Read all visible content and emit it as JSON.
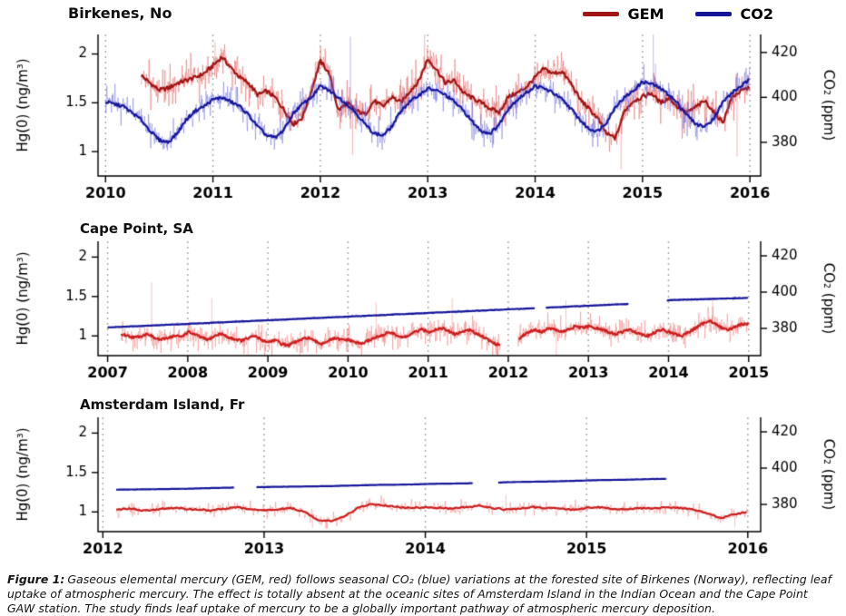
{
  "figure": {
    "legend": [
      {
        "label": "GEM",
        "color": "#a01414"
      },
      {
        "label": "CO2",
        "color": "#16169b"
      }
    ],
    "caption": {
      "label": "Figure 1:",
      "text": "Gaseous elemental mercury (GEM, red) follows seasonal CO₂ (blue) variations at the forested site of Birkenes (Norway), reflecting leaf uptake of atmospheric mercury. The effect is totally absent at the oceanic sites of Amsterdam Island in the Indian Ocean and the Cape Point GAW station. The study finds leaf uptake of mercury to be a globally important pathway of atmospheric mercury deposition."
    },
    "colors": {
      "gem_bold": "#a01414",
      "gem_raw": "rgba(225,95,95,0.6)",
      "co2_bold": "#16169b",
      "co2_raw": "rgba(100,100,215,0.55)",
      "grid": "#a8a8a8"
    }
  },
  "chart_data": [
    {
      "type": "line",
      "title": "Birkenes, No",
      "ylabel_left": "Hg(0) (ng/m³)",
      "ylabel_right": "CO₂ (ppm)",
      "xlim": [
        2009.93,
        2016.1
      ],
      "xticks": [
        2010,
        2011,
        2012,
        2013,
        2014,
        2015,
        2016
      ],
      "yleft": {
        "ticks": [
          1,
          1.5,
          2
        ],
        "lim": [
          0.75,
          2.2
        ]
      },
      "yright": {
        "ticks": [
          380,
          400,
          420
        ],
        "lim": [
          365,
          428
        ]
      },
      "grid": "vertical-dotted",
      "legend_position": "top-right",
      "series": [
        {
          "name": "GEM",
          "axis": "left",
          "color_bold": "#a01414",
          "color_raw": "rgba(225,95,95,0.6)",
          "start": 2010.333,
          "step": 0.08333,
          "noise_amp": 0.12,
          "values": [
            1.78,
            1.7,
            1.63,
            1.65,
            1.7,
            1.73,
            1.76,
            1.8,
            1.88,
            1.97,
            1.86,
            1.76,
            1.7,
            1.58,
            1.62,
            1.55,
            1.42,
            1.28,
            1.35,
            1.62,
            1.93,
            1.8,
            1.42,
            1.5,
            1.42,
            1.38,
            1.52,
            1.46,
            1.56,
            1.5,
            1.62,
            1.72,
            1.95,
            1.84,
            1.7,
            1.73,
            1.6,
            1.55,
            1.5,
            1.44,
            1.4,
            1.56,
            1.6,
            1.66,
            1.76,
            1.85,
            1.8,
            1.82,
            1.7,
            1.54,
            1.44,
            1.34,
            1.18,
            1.14,
            1.42,
            1.52,
            1.56,
            1.6,
            1.5,
            1.55,
            1.45,
            1.4,
            1.46,
            1.52,
            1.4,
            1.3,
            1.56,
            1.62,
            1.66
          ],
          "raw_spikes": [
            [
              2011.02,
              2.12
            ],
            [
              2012.3,
              0.97
            ],
            [
              2012.97,
              2.2
            ],
            [
              2014.8,
              0.82
            ],
            [
              2015.88,
              0.95
            ]
          ],
          "gaps": []
        },
        {
          "name": "CO2",
          "axis": "right",
          "color_bold": "#16169b",
          "color_raw": "rgba(100,100,215,0.55)",
          "start": 2010.0,
          "step": 0.08333,
          "noise_amp": 4.0,
          "values": [
            398,
            397,
            396,
            393,
            390,
            385,
            381,
            380,
            384,
            390,
            394,
            396,
            399,
            400,
            398,
            396,
            392,
            387,
            383,
            382,
            386,
            393,
            397,
            400,
            405,
            403,
            400,
            397,
            393,
            388,
            384,
            383,
            387,
            394,
            398,
            401,
            404,
            403,
            401,
            398,
            394,
            389,
            385,
            384,
            388,
            395,
            399,
            402,
            405,
            404,
            402,
            399,
            395,
            390,
            386,
            385,
            389,
            396,
            400,
            403,
            407,
            406,
            404,
            401,
            397,
            392,
            388,
            387,
            391,
            398,
            402,
            405,
            408
          ],
          "raw_spikes": [
            [
              2012.28,
              427
            ],
            [
              2015.1,
              431
            ],
            [
              2015.12,
              415
            ]
          ],
          "gaps": []
        }
      ]
    },
    {
      "type": "line",
      "title": "Cape Point, SA",
      "ylabel_left": "Hg(0) (ng/m³)",
      "ylabel_right": "CO₂ (ppm)",
      "xlim": [
        2006.88,
        2015.15
      ],
      "xticks": [
        2007,
        2008,
        2009,
        2010,
        2011,
        2012,
        2013,
        2014,
        2015
      ],
      "yleft": {
        "ticks": [
          1,
          1.5,
          2
        ],
        "lim": [
          0.75,
          2.2
        ]
      },
      "yright": {
        "ticks": [
          380,
          400,
          420
        ],
        "lim": [
          365,
          428
        ]
      },
      "grid": "vertical-dotted",
      "series": [
        {
          "name": "GEM",
          "axis": "left",
          "color_bold": "#cc1f1f",
          "color_raw": "rgba(240,120,120,0.55)",
          "start": 2007.17,
          "step": 0.08333,
          "noise_amp": 0.09,
          "values": [
            1.02,
            1.0,
            0.98,
            1.0,
            1.03,
            0.97,
            0.95,
            0.98,
            1.0,
            0.99,
            1.05,
            1.02,
            0.98,
            0.95,
            1.0,
            1.03,
            0.98,
            0.96,
            0.94,
            0.97,
            1.0,
            0.95,
            0.92,
            0.95,
            0.9,
            0.88,
            0.92,
            0.95,
            0.98,
            0.93,
            0.9,
            0.94,
            0.97,
            0.95,
            0.95,
            0.92,
            0.9,
            0.94,
            0.98,
            1.0,
            1.05,
            1.02,
            0.98,
            1.0,
            1.05,
            1.08,
            1.05,
            1.08,
            1.1,
            1.06,
            1.02,
            1.05,
            1.08,
            1.04,
            1.0,
            0.95,
            0.9,
            0.88,
            0.85,
            0.9,
            1.0,
            1.05,
            1.08,
            1.05,
            1.1,
            1.08,
            1.05,
            1.08,
            1.12,
            1.1,
            1.12,
            1.1,
            1.08,
            1.05,
            1.02,
            1.05,
            1.08,
            1.05,
            1.02,
            1.0,
            1.05,
            1.08,
            1.05,
            1.02,
            1.0,
            1.05,
            1.1,
            1.15,
            1.2,
            1.15,
            1.1,
            1.08,
            1.12,
            1.15,
            1.15
          ],
          "raw_spikes": [
            [
              2007.55,
              1.68
            ],
            [
              2008.3,
              1.48
            ],
            [
              2008.75,
              0.62
            ],
            [
              2009.4,
              0.66
            ],
            [
              2010.35,
              1.42
            ],
            [
              2011.3,
              1.48
            ],
            [
              2012.6,
              0.7
            ],
            [
              2012.72,
              1.45
            ],
            [
              2014.55,
              1.48
            ]
          ],
          "gaps": [
            [
              2011.9,
              2012.12
            ]
          ]
        },
        {
          "name": "CO2",
          "axis": "right",
          "color_bold": "#16169b",
          "color_raw": "rgba(100,100,215,0.5)",
          "start": 2007.0,
          "step": 0.08333,
          "noise_amp": 0.5,
          "values": [
            380.5,
            380.7,
            380.8,
            381.0,
            381.2,
            381.3,
            381.5,
            381.7,
            381.8,
            382.0,
            382.2,
            382.3,
            382.5,
            382.7,
            382.8,
            383.0,
            383.2,
            383.3,
            383.5,
            383.7,
            383.8,
            384.0,
            384.2,
            384.3,
            384.5,
            384.7,
            384.8,
            385.0,
            385.2,
            385.3,
            385.5,
            385.7,
            385.8,
            386.0,
            386.2,
            386.3,
            386.5,
            386.7,
            386.8,
            387.0,
            387.2,
            387.3,
            387.5,
            387.7,
            387.8,
            388.0,
            388.2,
            388.3,
            388.5,
            388.7,
            388.8,
            389.0,
            389.2,
            389.3,
            389.5,
            389.7,
            389.8,
            390.0,
            390.2,
            390.3,
            390.5,
            390.7,
            390.8,
            391.0,
            391.2,
            391.3,
            391.5,
            391.7,
            391.8,
            392.0,
            392.2,
            392.3,
            392.5,
            392.7,
            392.8,
            393.0,
            393.2,
            393.3,
            393.5,
            393.7,
            393.8,
            394.0,
            394.2,
            394.3,
            395.6,
            395.7,
            395.8,
            395.9,
            396.0,
            396.1,
            396.2,
            396.3,
            396.4,
            396.5,
            396.6,
            396.7,
            396.8
          ],
          "raw_spikes": [],
          "gaps": [
            [
              2012.33,
              2012.46
            ],
            [
              2013.5,
              2013.97
            ]
          ]
        }
      ]
    },
    {
      "type": "line",
      "title": "Amsterdam Island, Fr",
      "ylabel_left": "Hg(0) (ng/m³)",
      "ylabel_right": "CO₂ (ppm)",
      "xlim": [
        2011.97,
        2016.08
      ],
      "xticks": [
        2012,
        2013,
        2014,
        2015,
        2016
      ],
      "yleft": {
        "ticks": [
          1,
          1.5,
          2
        ],
        "lim": [
          0.75,
          2.2
        ]
      },
      "yright": {
        "ticks": [
          380,
          400,
          420
        ],
        "lim": [
          365,
          428
        ]
      },
      "grid": "vertical-dotted",
      "series": [
        {
          "name": "GEM",
          "axis": "left",
          "color_bold": "#cc1f1f",
          "color_raw": "rgba(240,120,120,0.55)",
          "start": 2012.083,
          "step": 0.08333,
          "noise_amp": 0.05,
          "values": [
            1.03,
            1.04,
            1.02,
            1.03,
            1.05,
            1.04,
            1.03,
            1.02,
            1.04,
            1.06,
            1.03,
            1.02,
            1.03,
            1.05,
            1.0,
            0.9,
            0.88,
            0.95,
            1.05,
            1.1,
            1.08,
            1.06,
            1.05,
            1.06,
            1.05,
            1.04,
            1.06,
            1.08,
            1.05,
            1.03,
            1.04,
            1.06,
            1.05,
            1.04,
            1.03,
            1.05,
            1.06,
            1.04,
            1.03,
            1.05,
            1.04,
            1.06,
            1.05,
            1.03,
            0.98,
            0.92,
            0.97,
            1.0
          ],
          "raw_spikes": [
            [
              2013.3,
              0.8
            ],
            [
              2014.5,
              1.22
            ],
            [
              2015.92,
              0.8
            ]
          ],
          "gaps": []
        },
        {
          "name": "CO2",
          "axis": "right",
          "color_bold": "#16169b",
          "color_raw": "rgba(100,100,215,0.5)",
          "start": 2012.083,
          "step": 0.08333,
          "noise_amp": 0.25,
          "values": [
            388.1,
            388.2,
            388.3,
            388.4,
            388.5,
            388.6,
            388.8,
            389.0,
            389.2,
            389.3,
            389.4,
            389.6,
            389.7,
            389.8,
            389.9,
            390.0,
            390.1,
            390.3,
            390.5,
            390.7,
            390.8,
            390.9,
            391.0,
            391.2,
            391.4,
            391.5,
            391.6,
            391.8,
            392.0,
            392.2,
            392.4,
            392.5,
            392.6,
            392.8,
            393.0,
            393.2,
            393.4,
            393.5,
            393.6,
            393.8,
            394.0,
            394.1
          ],
          "raw_spikes": [],
          "gaps": [
            [
              2012.82,
              2012.95
            ],
            [
              2014.3,
              2014.45
            ]
          ]
        }
      ]
    }
  ]
}
